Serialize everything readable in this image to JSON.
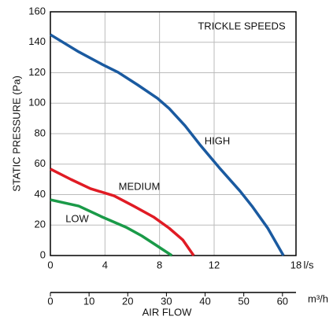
{
  "chart_data": {
    "type": "line",
    "annotation": "TRICKLE SPEEDS",
    "y_label": "STATIC PRESSURE (Pa)",
    "x_label": "AIR FLOW",
    "x_unit": "l/s",
    "x2_unit": "m³/h",
    "xlim": [
      0,
      18
    ],
    "xticks": [
      0,
      4,
      8,
      12,
      18
    ],
    "x2lim": [
      0,
      63.5
    ],
    "x2ticks": [
      0,
      10,
      20,
      30,
      40,
      50,
      60
    ],
    "ylim": [
      0,
      160
    ],
    "yticks": [
      0,
      20,
      40,
      60,
      80,
      100,
      120,
      140,
      160
    ],
    "grid": true,
    "series": [
      {
        "name": "HIGH",
        "color": "#1a5aa0",
        "x": [
          0,
          2.08,
          3.81,
          4.96,
          6.4,
          7.85,
          8.71,
          9.87,
          11.0,
          12.46,
          13.9,
          14.77,
          15.92,
          17.08
        ],
        "values": [
          145,
          133.7,
          125.4,
          120.3,
          112,
          103.2,
          96.5,
          85.2,
          72.3,
          56.8,
          42.3,
          32.5,
          18.1,
          0
        ]
      },
      {
        "name": "MEDIUM",
        "color": "#e01b24",
        "x": [
          0,
          1.5,
          2.94,
          4.67,
          6.1,
          7.56,
          8.7,
          9.7,
          10.5
        ],
        "values": [
          56.8,
          50,
          43.9,
          39.2,
          32.5,
          25.3,
          18,
          10.3,
          0
        ]
      },
      {
        "name": "LOW",
        "color": "#1a9a48",
        "x": [
          0,
          2.08,
          3.8,
          5.54,
          6.7,
          7.85,
          8.9
        ],
        "values": [
          36.6,
          32.5,
          25.3,
          18.6,
          12.9,
          6.2,
          0
        ]
      }
    ]
  }
}
